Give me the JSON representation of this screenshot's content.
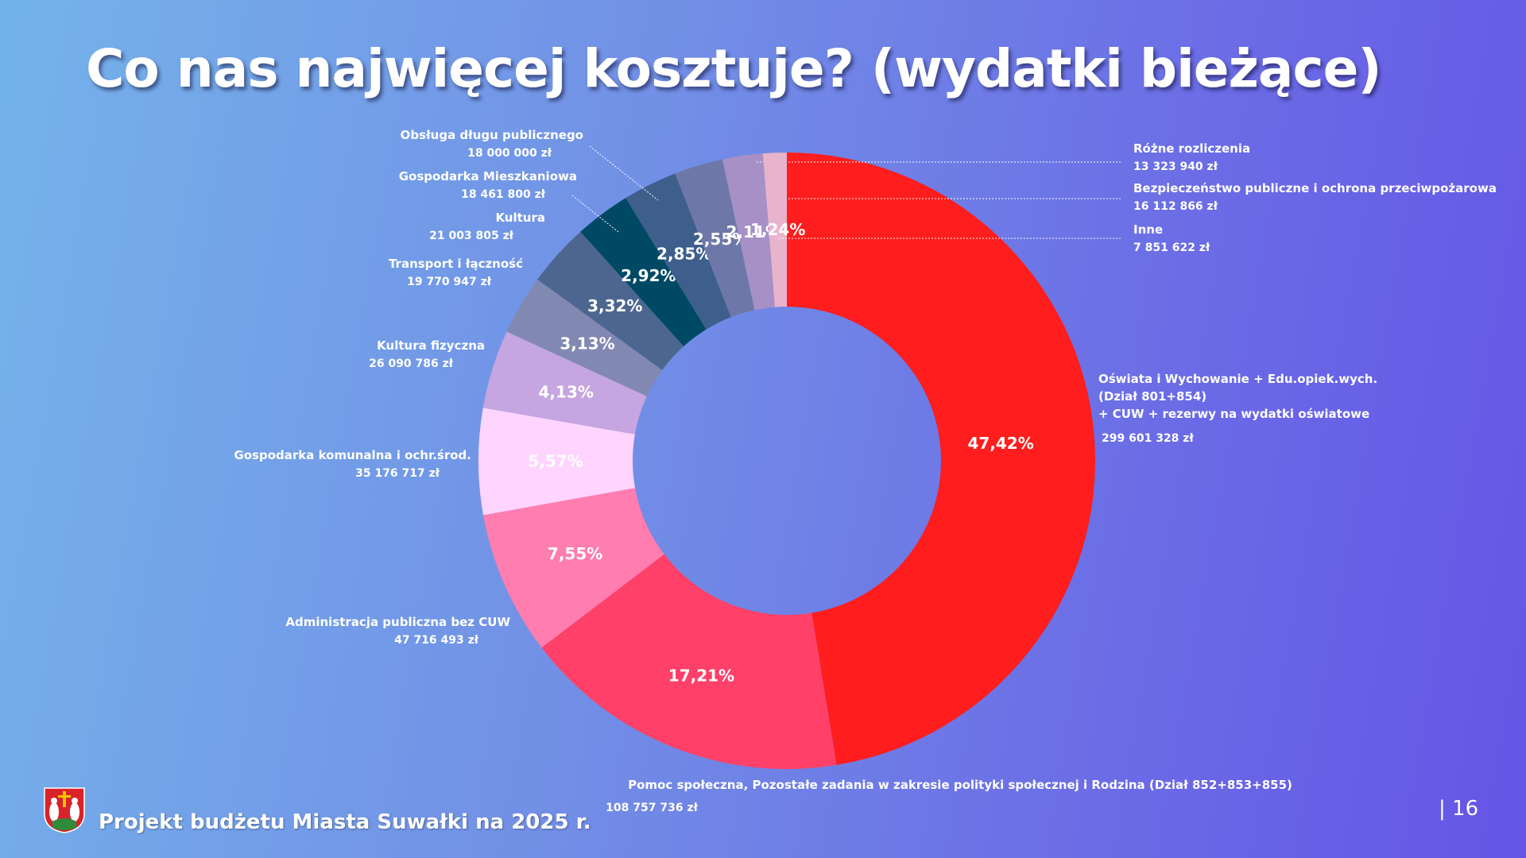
{
  "title": "Co nas najwięcej kosztuje? (wydatki bieżące)",
  "footer": {
    "text": "Projekt budżetu Miasta Suwałki na 2025 r.",
    "page_number": "| 16"
  },
  "chart_data": {
    "type": "donut",
    "title": "Co nas najwięcej kosztuje? (wydatki bieżące)",
    "unit": "zł",
    "slices": [
      {
        "pct": "47,42%",
        "value": 47.42,
        "label_lines": [
          "Oświata i Wychowanie + Edu.opiek.wych.",
          "(Dział 801+854)",
          "+ CUW + rezerwy na wydatki oświatowe"
        ],
        "amount": "299 601 328 zł",
        "color": "#ff1d1d"
      },
      {
        "pct": "17,21%",
        "value": 17.21,
        "label_lines": [
          "Pomoc społeczna, Pozostałe zadania w zakresie polityki społecznej i Rodzina (Dział 852+853+855)"
        ],
        "amount": "108 757 736 zł",
        "color": "#ff4068"
      },
      {
        "pct": "7,55%",
        "value": 7.55,
        "label_lines": [
          "Administracja publiczna bez CUW"
        ],
        "amount": "47 716 493 zł",
        "color": "#ff7daf"
      },
      {
        "pct": "5,57%",
        "value": 5.57,
        "label_lines": [
          "Gospodarka komunalna i ochr.środ."
        ],
        "amount": "35 176 717 zł",
        "color": "#ffd4ff"
      },
      {
        "pct": "4,13%",
        "value": 4.13,
        "label_lines": [
          "Kultura fizyczna"
        ],
        "amount": "26 090 786 zł",
        "color": "#c6a6e0"
      },
      {
        "pct": "3,13%",
        "value": 3.13,
        "label_lines": [
          "Transport i łączność"
        ],
        "amount": "19 770 947 zł",
        "color": "#8189b2"
      },
      {
        "pct": "3,32%",
        "value": 3.32,
        "label_lines": [
          "Kultura"
        ],
        "amount": "21 003 805 zł",
        "color": "#4c6690"
      },
      {
        "pct": "2,92%",
        "value": 2.92,
        "label_lines": [
          "Gospodarka Mieszkaniowa"
        ],
        "amount": "18 461 800 zł",
        "color": "#004964"
      },
      {
        "pct": "2,85%",
        "value": 2.85,
        "label_lines": [
          "Obsługa długu publicznego"
        ],
        "amount": "18 000 000 zł",
        "color": "#3e5f8c"
      },
      {
        "pct": "2,55%",
        "value": 2.55,
        "label_lines": [
          "Bezpieczeństwo publiczne i ochrona przeciwpożarowa"
        ],
        "amount": "16 112 866 zł",
        "color": "#6e78a8"
      },
      {
        "pct": "2,11%",
        "value": 2.11,
        "label_lines": [
          "Różne rozliczenia"
        ],
        "amount": "13 323 940 zł",
        "color": "#a690c6"
      },
      {
        "pct": "1,24%",
        "value": 1.24,
        "label_lines": [
          "Inne"
        ],
        "amount": "7 851 622 zł",
        "color": "#e8b4cc"
      }
    ]
  }
}
